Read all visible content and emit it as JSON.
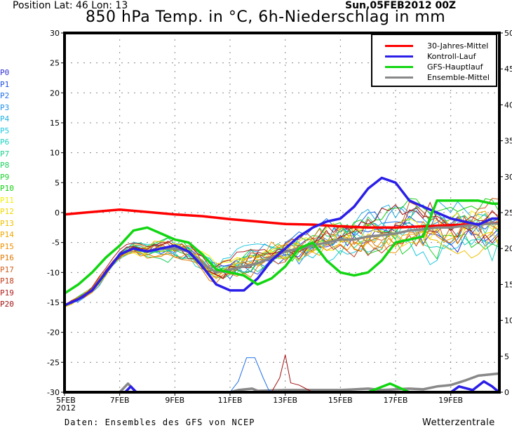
{
  "header": {
    "position_label": "Position   Lat: 46 Lon: 13",
    "date_label": "Sun,05FEB2012 00Z",
    "title": "850 hPa Temp. in °C, 6h-Niederschlag in mm"
  },
  "footer": {
    "source": "Daten: Ensembles des GFS von NCEP",
    "brand": "Wetterzentrale"
  },
  "members": [
    {
      "label": "P0",
      "color": "#3030d0"
    },
    {
      "label": "P1",
      "color": "#2050e0"
    },
    {
      "label": "P2",
      "color": "#2070e8"
    },
    {
      "label": "P3",
      "color": "#2090e8"
    },
    {
      "label": "P4",
      "color": "#20b0e0"
    },
    {
      "label": "P5",
      "color": "#20c8e0"
    },
    {
      "label": "P6",
      "color": "#20d0c0"
    },
    {
      "label": "P7",
      "color": "#20d090"
    },
    {
      "label": "P8",
      "color": "#20d060"
    },
    {
      "label": "P9",
      "color": "#20d030"
    },
    {
      "label": "P10",
      "color": "#10d010"
    },
    {
      "label": "P11",
      "color": "#f0f000"
    },
    {
      "label": "P12",
      "color": "#f0d800"
    },
    {
      "label": "P13",
      "color": "#f0c000"
    },
    {
      "label": "P14",
      "color": "#f0a800"
    },
    {
      "label": "P15",
      "color": "#f09000"
    },
    {
      "label": "P16",
      "color": "#e07800"
    },
    {
      "label": "P17",
      "color": "#d06020"
    },
    {
      "label": "P18",
      "color": "#c04020"
    },
    {
      "label": "P19",
      "color": "#b02020"
    },
    {
      "label": "P20",
      "color": "#a01010"
    }
  ],
  "chart_data": {
    "type": "line",
    "title": "850 hPa Temp. in °C, 6h-Niederschlag in mm",
    "x_unit": "days since 05FEB2012 00Z",
    "x_range": [
      0,
      15.75
    ],
    "x_ticks": [
      {
        "x": 0,
        "label": "5FEB",
        "sublabel": "2012"
      },
      {
        "x": 2,
        "label": "7FEB"
      },
      {
        "x": 4,
        "label": "9FEB"
      },
      {
        "x": 6,
        "label": "11FEB"
      },
      {
        "x": 8,
        "label": "13FEB"
      },
      {
        "x": 10,
        "label": "15FEB"
      },
      {
        "x": 12,
        "label": "17FEB"
      },
      {
        "x": 14,
        "label": "19FEB"
      }
    ],
    "y_left": {
      "label": "850 hPa Temp. (°C)",
      "range": [
        -30,
        30
      ],
      "ticks": [
        30,
        25,
        20,
        15,
        10,
        5,
        0,
        -5,
        -10,
        -15,
        -20,
        -25,
        -30
      ]
    },
    "y_right": {
      "label": "6h-Niederschlag (mm)",
      "range": [
        0,
        50
      ],
      "ticks": [
        50,
        45,
        40,
        35,
        30,
        25,
        20,
        15,
        10,
        5,
        0
      ]
    },
    "grid": true,
    "legend": {
      "placement": "top-right",
      "entries": [
        {
          "label": "30-Jahres-Mittel",
          "color": "#ff0000"
        },
        {
          "label": "Kontroll-Lauf",
          "color": "#2a1ee8"
        },
        {
          "label": "GFS-Hauptlauf",
          "color": "#11d611"
        },
        {
          "label": "Ensemble-Mittel",
          "color": "#888888"
        }
      ]
    },
    "series": [
      {
        "name": "30-Jahres-Mittel",
        "axis": "left",
        "color": "#ff0000",
        "x": [
          0,
          1,
          2,
          3,
          4,
          5,
          6,
          7,
          8,
          9,
          10,
          11,
          12,
          13,
          14,
          15,
          15.75
        ],
        "y": [
          -0.3,
          0.1,
          0.5,
          0.1,
          -0.3,
          -0.6,
          -1.1,
          -1.5,
          -1.9,
          -2.0,
          -2.3,
          -2.5,
          -2.5,
          -2.3,
          -2.1,
          -1.9,
          -1.7
        ]
      },
      {
        "name": "Kontroll-Lauf",
        "axis": "left",
        "color": "#2a1ee8",
        "x": [
          0,
          0.5,
          1,
          1.5,
          2,
          2.5,
          3,
          3.5,
          4,
          4.5,
          5,
          5.5,
          6,
          6.5,
          7,
          7.5,
          8,
          8.5,
          9,
          9.5,
          10,
          10.5,
          11,
          11.5,
          12,
          12.5,
          13,
          13.5,
          14,
          14.5,
          15,
          15.5,
          15.75
        ],
        "y": [
          -15.5,
          -14.5,
          -13.0,
          -10.0,
          -7.0,
          -6.0,
          -6.5,
          -6.0,
          -5.5,
          -6.5,
          -9.0,
          -12.0,
          -13.0,
          -13.0,
          -11.0,
          -8.0,
          -6.0,
          -4.0,
          -2.5,
          -1.5,
          -1.0,
          1.0,
          4.0,
          5.8,
          5.0,
          2.0,
          1.0,
          0.0,
          -1.0,
          -1.5,
          -2.0,
          -1.0,
          -1.0
        ]
      },
      {
        "name": "GFS-Hauptlauf",
        "axis": "left",
        "color": "#11d611",
        "x": [
          0,
          0.5,
          1,
          1.5,
          2,
          2.5,
          3,
          3.5,
          4,
          4.5,
          5,
          5.5,
          6,
          6.5,
          7,
          7.5,
          8,
          8.5,
          9,
          9.5,
          10,
          10.5,
          11,
          11.5,
          12,
          12.5,
          13,
          13.5,
          14,
          14.5,
          15,
          15.5,
          15.75
        ],
        "y": [
          -13.5,
          -12.0,
          -10.0,
          -7.5,
          -5.5,
          -3.0,
          -2.5,
          -3.5,
          -4.5,
          -5.0,
          -7.0,
          -9.5,
          -10.0,
          -10.5,
          -12.0,
          -11.0,
          -9.0,
          -6.0,
          -5.0,
          -8.0,
          -10.0,
          -10.5,
          -10.0,
          -8.0,
          -5.0,
          -4.5,
          -4.0,
          2.0,
          2.0,
          2.0,
          2.0,
          1.5,
          1.5
        ]
      },
      {
        "name": "Ensemble-Mittel",
        "axis": "left",
        "color": "#888888",
        "x": [
          0,
          0.5,
          1,
          1.5,
          2,
          2.5,
          3,
          3.5,
          4,
          4.5,
          5,
          5.5,
          6,
          6.5,
          7,
          7.5,
          8,
          8.5,
          9,
          9.5,
          10,
          10.5,
          11,
          11.5,
          12,
          12.5,
          13,
          13.5,
          14,
          14.5,
          15,
          15.5,
          15.75
        ],
        "y": [
          -15.5,
          -14.5,
          -13.0,
          -10.0,
          -7.0,
          -6.0,
          -6.5,
          -6.0,
          -6.0,
          -6.5,
          -8.5,
          -10.0,
          -9.5,
          -9.0,
          -8.5,
          -7.5,
          -6.5,
          -6.0,
          -5.5,
          -5.0,
          -4.5,
          -4.5,
          -4.0,
          -3.8,
          -3.5,
          -3.0,
          -2.8,
          -2.5,
          -2.5,
          -2.2,
          -2.0,
          -1.8,
          -1.8
        ]
      },
      {
        "name": "Ensemble-Mittel Niederschlag",
        "axis": "right",
        "color": "#888888",
        "x": [
          0,
          2,
          2.3,
          2.6,
          3,
          6,
          6.3,
          6.8,
          7,
          8,
          9,
          10,
          11,
          11.5,
          12,
          12.5,
          13,
          13.5,
          14,
          14.5,
          15,
          15.5,
          15.75
        ],
        "y": [
          0,
          0,
          1.2,
          0,
          0,
          0,
          0.3,
          0.5,
          0.2,
          0.3,
          0.3,
          0.3,
          0.5,
          0.3,
          0.4,
          0.5,
          0.4,
          0.8,
          1.0,
          1.6,
          2.3,
          2.5,
          2.6
        ]
      },
      {
        "name": "GFS-Hauptlauf Niederschlag",
        "axis": "right",
        "color": "#11d611",
        "x": [
          0,
          8.5,
          11,
          11.8,
          12.5,
          13,
          13.5,
          15.75
        ],
        "y": [
          0,
          0,
          0,
          1.2,
          0,
          0,
          0,
          0
        ]
      },
      {
        "name": "Kontroll-Lauf Niederschlag",
        "axis": "right",
        "color": "#2a1ee8",
        "x": [
          0,
          2.2,
          2.4,
          2.6,
          3,
          13.5,
          14,
          14.3,
          14.8,
          15.2,
          15.5,
          15.75
        ],
        "y": [
          0,
          0,
          0.8,
          0,
          0,
          0,
          0,
          0.8,
          0.3,
          1.5,
          0.8,
          0
        ]
      },
      {
        "name": "P2 Niederschlag",
        "axis": "right",
        "color": "#2070e8",
        "x": [
          0,
          6,
          6.3,
          6.6,
          6.9,
          7.2,
          7.4,
          7.6,
          15.75
        ],
        "y": [
          0,
          0,
          1.5,
          4.8,
          4.8,
          2,
          0.3,
          0,
          0
        ]
      },
      {
        "name": "P19 Niederschlag",
        "axis": "right",
        "color": "#a01010",
        "x": [
          0,
          7.5,
          7.8,
          8.0,
          8.2,
          8.5,
          9,
          15.75
        ],
        "y": [
          0,
          0,
          2,
          5.2,
          1.3,
          1.0,
          0,
          0
        ]
      }
    ]
  }
}
